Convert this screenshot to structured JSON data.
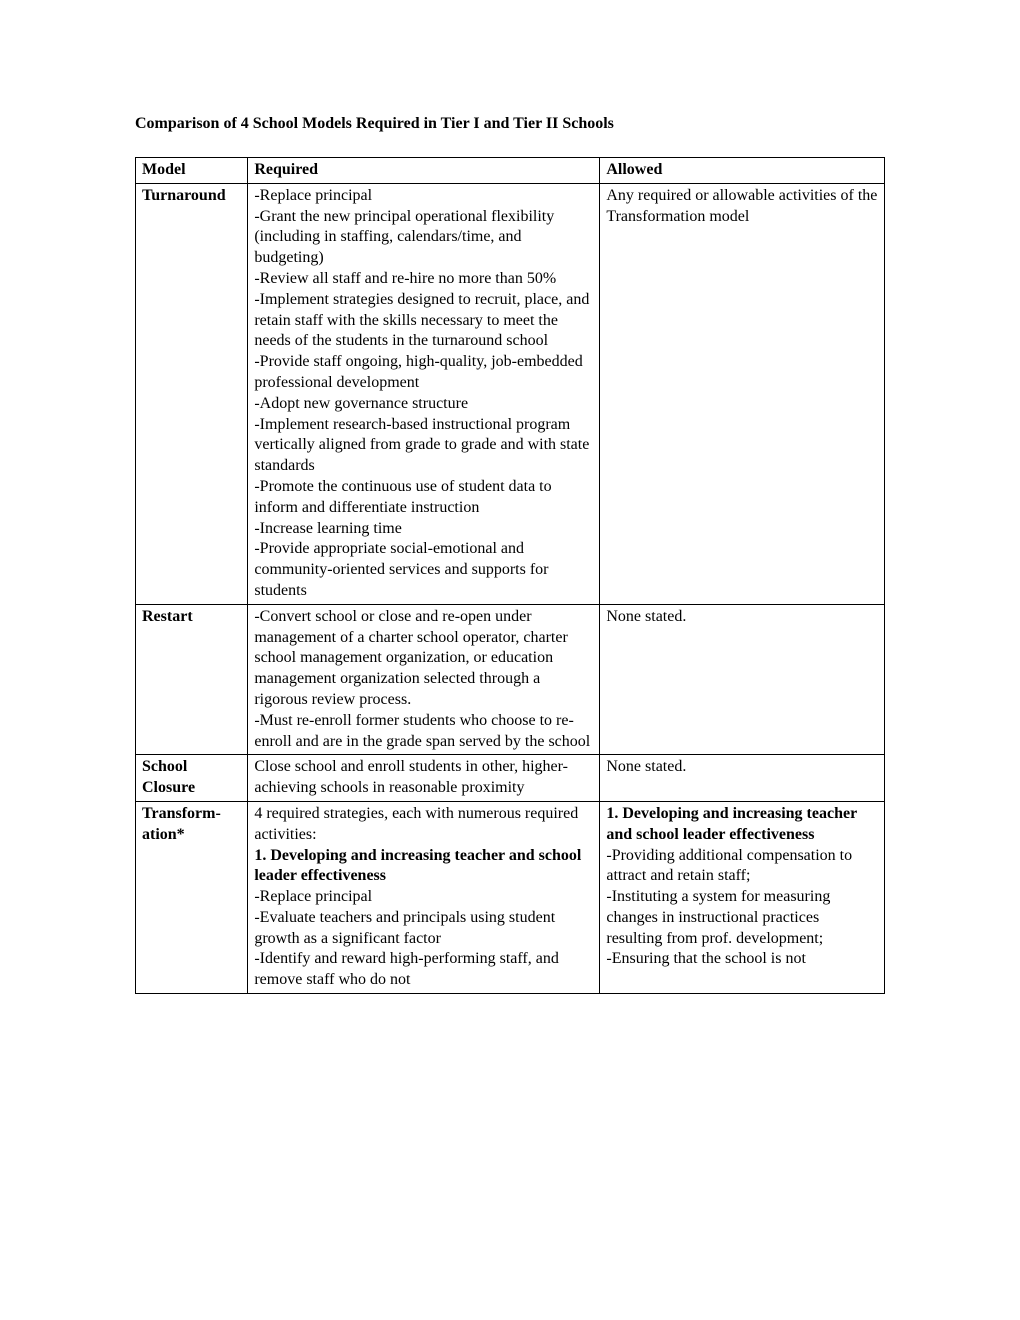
{
  "title": "Comparison of 4 School Models Required in Tier I and Tier II Schools",
  "headers": {
    "model": "Model",
    "required": "Required",
    "allowed": "Allowed"
  },
  "rows": {
    "turnaround": {
      "model": "Turnaround",
      "required_lines": [
        "-Replace principal",
        "-Grant the new principal operational flexibility (including in staffing, calendars/time, and budgeting)",
        "-Review all staff and re-hire no more than 50%",
        "-Implement strategies designed to recruit, place, and retain staff with the skills necessary to meet the needs of the students in the turnaround school",
        "-Provide staff ongoing, high-quality, job-embedded professional development",
        "-Adopt new governance structure",
        "-Implement research-based instructional program vertically aligned from grade to grade and with state standards",
        "-Promote the continuous use of student data to inform and differentiate instruction",
        "-Increase learning time",
        "-Provide appropriate social-emotional and community-oriented services and supports for students"
      ],
      "allowed": "Any required or allowable activities of the Transformation model"
    },
    "restart": {
      "model": "Restart",
      "required_lines": [
        "-Convert school or close and re-open under management of a charter school operator, charter school management organization, or education management organization selected through a rigorous review process.",
        "-Must re-enroll former students who choose to re-enroll and are in the grade span served by the school"
      ],
      "allowed": "None stated."
    },
    "closure": {
      "model_l1": "School",
      "model_l2": "Closure",
      "required": "Close school and enroll students in other, higher-achieving schools in reasonable proximity",
      "allowed": "None stated."
    },
    "transformation": {
      "model_l1": "Transform-",
      "model_l2": "ation*",
      "required_intro": "4 required strategies, each with numerous required activities:",
      "required_h1": "1. Developing and increasing teacher and school leader effectiveness",
      "required_lines": [
        "-Replace principal",
        "-Evaluate teachers and principals using student growth as a significant factor",
        "-Identify and reward high-performing staff, and remove staff who do not"
      ],
      "allowed_h1": "1. Developing and increasing teacher and school leader effectiveness",
      "allowed_lines": [
        "-Providing additional compensation to attract and retain staff;",
        "-Instituting a system for measuring changes in instructional practices resulting from prof. development;",
        "-Ensuring that the school is not"
      ]
    }
  }
}
